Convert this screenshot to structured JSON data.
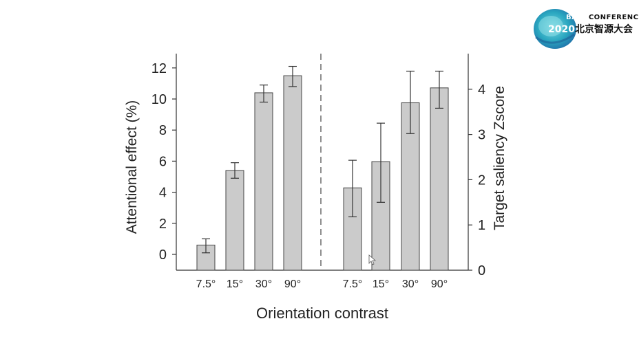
{
  "logo": {
    "brand": "BAAI",
    "tag": "CONFERENCE",
    "year": "2020",
    "name_cn": "北京智源大会",
    "colors": [
      "#5ec8d6",
      "#2aa7c0",
      "#1f86b5"
    ]
  },
  "chart_data": [
    {
      "type": "bar",
      "categories": [
        "7.5°",
        "15°",
        "30°",
        "90°"
      ],
      "values": [
        0.6,
        5.4,
        10.4,
        11.5
      ],
      "error_low": [
        0.1,
        4.9,
        9.8,
        10.8
      ],
      "error_high": [
        1.0,
        5.9,
        10.9,
        12.1
      ],
      "ylabel": "Attentional effect (%)",
      "ylim": [
        -1.0,
        13.0
      ],
      "yticks": [
        0,
        2,
        4,
        6,
        8,
        10,
        12
      ],
      "axis_side": "left",
      "bar_color": "#cbcbcb"
    },
    {
      "type": "bar",
      "categories": [
        "7.5°",
        "15°",
        "30°",
        "90°"
      ],
      "values": [
        1.82,
        2.4,
        3.7,
        4.03
      ],
      "error_low": [
        1.18,
        1.5,
        3.02,
        3.58
      ],
      "error_high": [
        2.43,
        3.25,
        4.4,
        4.4
      ],
      "ylabel": "Target saliency Zscore",
      "ylim": [
        0,
        4.8
      ],
      "yticks": [
        0,
        1,
        2,
        3,
        4
      ],
      "axis_side": "right",
      "bar_color": "#cbcbcb"
    }
  ],
  "xlabel": "Orientation contrast"
}
